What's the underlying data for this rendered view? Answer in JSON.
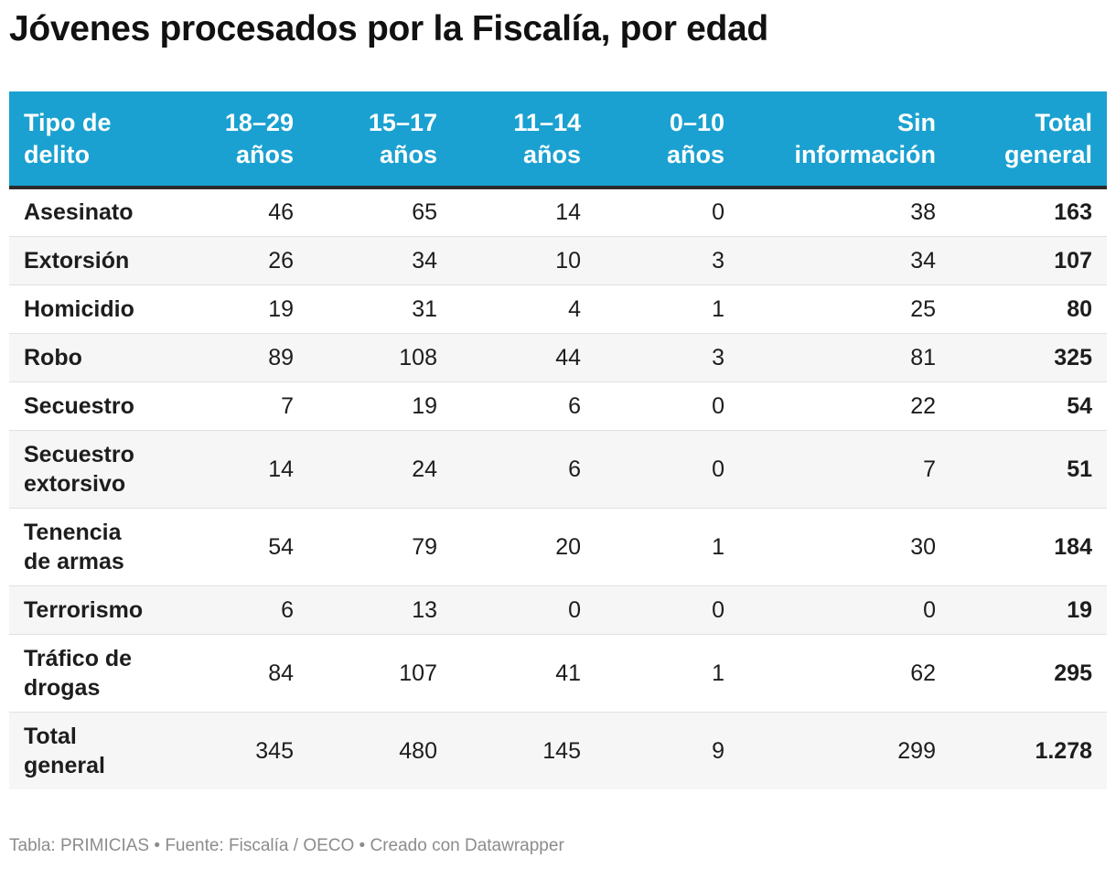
{
  "title": "Jóvenes procesados por la Fiscalía, por edad",
  "table": {
    "headers": [
      "Tipo de delito",
      "18–29 años",
      "15–17 años",
      "11–14 años",
      "0–10 años",
      "Sin información",
      "Total general"
    ],
    "rows": [
      [
        "Asesinato",
        "46",
        "65",
        "14",
        "0",
        "38",
        "163"
      ],
      [
        "Extorsión",
        "26",
        "34",
        "10",
        "3",
        "34",
        "107"
      ],
      [
        "Homicidio",
        "19",
        "31",
        "4",
        "1",
        "25",
        "80"
      ],
      [
        "Robo",
        "89",
        "108",
        "44",
        "3",
        "81",
        "325"
      ],
      [
        "Secuestro",
        "7",
        "19",
        "6",
        "0",
        "22",
        "54"
      ],
      [
        "Secuestro extorsivo",
        "14",
        "24",
        "6",
        "0",
        "7",
        "51"
      ],
      [
        "Tenencia de armas",
        "54",
        "79",
        "20",
        "1",
        "30",
        "184"
      ],
      [
        "Terrorismo",
        "6",
        "13",
        "0",
        "0",
        "0",
        "19"
      ],
      [
        "Tráfico de drogas",
        "84",
        "107",
        "41",
        "1",
        "62",
        "295"
      ],
      [
        "Total general",
        "345",
        "480",
        "145",
        "9",
        "299",
        "1.278"
      ]
    ]
  },
  "footer": "Tabla: PRIMICIAS • Fuente: Fiscalía / OECO • Creado con Datawrapper",
  "colors": {
    "header_bg": "#1aa1d1",
    "header_text": "#ffffff",
    "stripe": "#f6f6f6"
  },
  "chart_data": {
    "type": "table",
    "title": "Jóvenes procesados por la Fiscalía, por edad",
    "columns": [
      "Tipo de delito",
      "18–29 años",
      "15–17 años",
      "11–14 años",
      "0–10 años",
      "Sin información",
      "Total general"
    ],
    "categories": [
      "Asesinato",
      "Extorsión",
      "Homicidio",
      "Robo",
      "Secuestro",
      "Secuestro extorsivo",
      "Tenencia de armas",
      "Terrorismo",
      "Tráfico de drogas",
      "Total general"
    ],
    "series": [
      {
        "name": "18–29 años",
        "values": [
          46,
          26,
          19,
          89,
          7,
          14,
          54,
          6,
          84,
          345
        ]
      },
      {
        "name": "15–17 años",
        "values": [
          65,
          34,
          31,
          108,
          19,
          24,
          79,
          13,
          107,
          480
        ]
      },
      {
        "name": "11–14 años",
        "values": [
          14,
          10,
          4,
          44,
          6,
          6,
          20,
          0,
          41,
          145
        ]
      },
      {
        "name": "0–10 años",
        "values": [
          0,
          3,
          1,
          3,
          0,
          0,
          1,
          0,
          1,
          9
        ]
      },
      {
        "name": "Sin información",
        "values": [
          38,
          34,
          25,
          81,
          22,
          7,
          30,
          0,
          62,
          299
        ]
      },
      {
        "name": "Total general",
        "values": [
          163,
          107,
          80,
          325,
          54,
          51,
          184,
          19,
          295,
          1278
        ]
      }
    ],
    "source": "Fiscalía / OECO"
  }
}
